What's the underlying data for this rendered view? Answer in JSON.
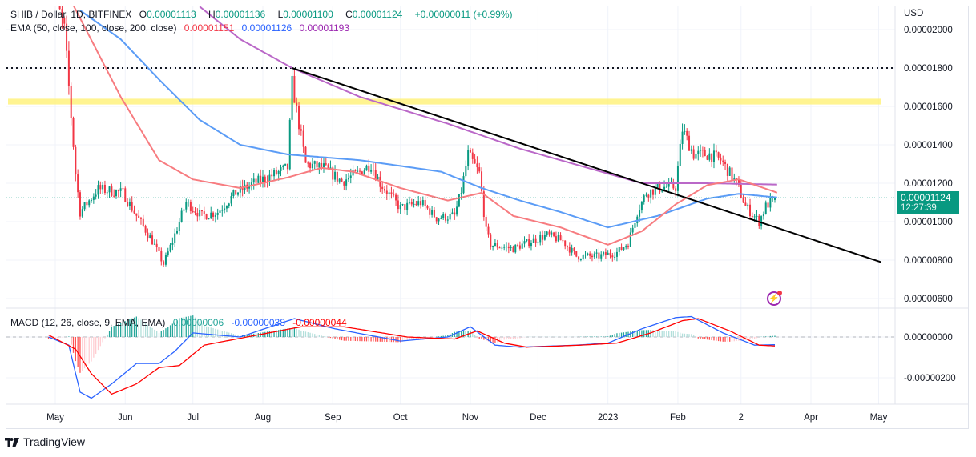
{
  "header": {
    "symbol": "SHIB / Dollar, 1D, BITFINEX",
    "open_label": "O",
    "open": "0.00001113",
    "high_label": "H",
    "high": "0.00001136",
    "low_label": "L",
    "low": "0.00001100",
    "close_label": "C",
    "close": "0.00001124",
    "change": "+0.00000011 (+0.99%)"
  },
  "ema_legend": {
    "label": "EMA (50, close, 100, close, 200, close)",
    "ema50": "0.00001151",
    "ema100": "0.00001126",
    "ema200": "0.00001193"
  },
  "macd_legend": {
    "label": "MACD (12, 26, close, 9, EMA, EMA)",
    "hist": "0.00000006",
    "macd": "-0.00000038",
    "signal": "-0.00000044"
  },
  "price_axis": {
    "currency": "USD",
    "ticks": [
      "0.00002000",
      "0.00001800",
      "0.00001600",
      "0.00001400",
      "0.00001200",
      "0.00001000",
      "0.00000800",
      "0.00000600"
    ]
  },
  "macd_axis": {
    "ticks": [
      "0.00000000",
      "-0.00000200"
    ]
  },
  "time_axis": {
    "ticks": [
      "May",
      "Jun",
      "Jul",
      "Aug",
      "Sep",
      "Oct",
      "Nov",
      "Dec",
      "2023",
      "Feb",
      "2",
      "Apr",
      "May"
    ]
  },
  "last_price": {
    "value": "0.00001124",
    "countdown": "12:27:39"
  },
  "branding": "TradingView",
  "colors": {
    "up": "#089981",
    "down": "#f23645",
    "ema50": "#f77c80",
    "ema100": "#5b9cf6",
    "ema200": "#ba68c8",
    "macd": "#2962ff",
    "signal": "#ff0000",
    "band": "#fff176"
  },
  "chart_data": {
    "type": "candlestick",
    "units": "USD",
    "ylim": [
      5.5e-06,
      2.15e-05
    ],
    "close_keypoints": [
      [
        "2022-04-28",
        2.3e-05
      ],
      [
        "2022-05-05",
        2e-05
      ],
      [
        "2022-05-10",
        1.25e-05
      ],
      [
        "2022-05-12",
        1.05e-05
      ],
      [
        "2022-05-20",
        1.17e-05
      ],
      [
        "2022-05-31",
        1.15e-05
      ],
      [
        "2022-06-05",
        1.05e-05
      ],
      [
        "2022-06-13",
        9e-06
      ],
      [
        "2022-06-18",
        7.8e-06
      ],
      [
        "2022-06-22",
        9e-06
      ],
      [
        "2022-06-28",
        1.1e-05
      ],
      [
        "2022-07-05",
        1.03e-05
      ],
      [
        "2022-07-12",
        1.05e-05
      ],
      [
        "2022-07-20",
        1.15e-05
      ],
      [
        "2022-07-28",
        1.2e-05
      ],
      [
        "2022-08-05",
        1.24e-05
      ],
      [
        "2022-08-12",
        1.28e-05
      ],
      [
        "2022-08-14",
        1.72e-05
      ],
      [
        "2022-08-16",
        1.58e-05
      ],
      [
        "2022-08-20",
        1.3e-05
      ],
      [
        "2022-08-28",
        1.28e-05
      ],
      [
        "2022-09-05",
        1.21e-05
      ],
      [
        "2022-09-12",
        1.25e-05
      ],
      [
        "2022-09-18",
        1.3e-05
      ],
      [
        "2022-09-22",
        1.2e-05
      ],
      [
        "2022-10-01",
        1.07e-05
      ],
      [
        "2022-10-10",
        1.1e-05
      ],
      [
        "2022-10-17",
        1.02e-05
      ],
      [
        "2022-10-25",
        1.03e-05
      ],
      [
        "2022-10-28",
        1.16e-05
      ],
      [
        "2022-10-31",
        1.35e-05
      ],
      [
        "2022-11-05",
        1.25e-05
      ],
      [
        "2022-11-08",
        9.5e-06
      ],
      [
        "2022-11-10",
        8.8e-06
      ],
      [
        "2022-11-20",
        8.6e-06
      ],
      [
        "2022-11-28",
        9e-06
      ],
      [
        "2022-12-05",
        9.3e-06
      ],
      [
        "2022-12-12",
        9e-06
      ],
      [
        "2022-12-18",
        8.2e-06
      ],
      [
        "2022-12-28",
        8.2e-06
      ],
      [
        "2023-01-05",
        8.4e-06
      ],
      [
        "2023-01-10",
        8.9e-06
      ],
      [
        "2023-01-14",
        1.05e-05
      ],
      [
        "2023-01-18",
        1.15e-05
      ],
      [
        "2023-01-25",
        1.18e-05
      ],
      [
        "2023-01-31",
        1.18e-05
      ],
      [
        "2023-02-03",
        1.48e-05
      ],
      [
        "2023-02-08",
        1.35e-05
      ],
      [
        "2023-02-15",
        1.35e-05
      ],
      [
        "2023-02-20",
        1.32e-05
      ],
      [
        "2023-02-27",
        1.2e-05
      ],
      [
        "2023-03-03",
        1.08e-05
      ],
      [
        "2023-03-09",
        1e-05
      ],
      [
        "2023-03-12",
        1.08e-05
      ],
      [
        "2023-03-16",
        1.124e-05
      ]
    ],
    "ema50": [
      [
        "2022-05-08",
        2.15e-05
      ],
      [
        "2022-05-30",
        1.65e-05
      ],
      [
        "2022-06-16",
        1.32e-05
      ],
      [
        "2022-07-01",
        1.22e-05
      ],
      [
        "2022-07-22",
        1.175e-05
      ],
      [
        "2022-08-12",
        1.23e-05
      ],
      [
        "2022-08-27",
        1.28e-05
      ],
      [
        "2022-09-10",
        1.26e-05
      ],
      [
        "2022-10-01",
        1.175e-05
      ],
      [
        "2022-10-22",
        1.11e-05
      ],
      [
        "2022-11-06",
        1.15e-05
      ],
      [
        "2022-11-20",
        1.03e-05
      ],
      [
        "2022-12-11",
        9.7e-06
      ],
      [
        "2023-01-01",
        8.8e-06
      ],
      [
        "2023-01-16",
        9.5e-06
      ],
      [
        "2023-01-31",
        1.09e-05
      ],
      [
        "2023-02-14",
        1.19e-05
      ],
      [
        "2023-02-28",
        1.22e-05
      ],
      [
        "2023-03-17",
        1.151e-05
      ]
    ],
    "ema100": [
      [
        "2022-05-12",
        2.1e-05
      ],
      [
        "2022-05-30",
        1.95e-05
      ],
      [
        "2022-06-16",
        1.74e-05
      ],
      [
        "2022-07-04",
        1.53e-05
      ],
      [
        "2022-07-22",
        1.4e-05
      ],
      [
        "2022-08-12",
        1.35e-05
      ],
      [
        "2022-09-13",
        1.32e-05
      ],
      [
        "2022-10-19",
        1.26e-05
      ],
      [
        "2022-11-06",
        1.175e-05
      ],
      [
        "2022-11-23",
        1.11e-05
      ],
      [
        "2022-12-11",
        1.05e-05
      ],
      [
        "2023-01-01",
        9.7e-06
      ],
      [
        "2023-01-23",
        1.03e-05
      ],
      [
        "2023-02-14",
        1.12e-05
      ],
      [
        "2023-02-28",
        1.145e-05
      ],
      [
        "2023-03-17",
        1.126e-05
      ]
    ],
    "ema200": [
      [
        "2022-07-04",
        2.12e-05
      ],
      [
        "2022-07-22",
        1.95e-05
      ],
      [
        "2022-08-14",
        1.8e-05
      ],
      [
        "2022-09-13",
        1.65e-05
      ],
      [
        "2022-10-22",
        1.51e-05
      ],
      [
        "2022-11-23",
        1.38e-05
      ],
      [
        "2022-12-29",
        1.26e-05
      ],
      [
        "2023-01-16",
        1.2e-05
      ],
      [
        "2023-02-14",
        1.2e-05
      ],
      [
        "2023-03-17",
        1.193e-05
      ]
    ],
    "macd": [
      [
        "2022-04-28",
        0.0
      ],
      [
        "2022-05-07",
        -4e-07
      ],
      [
        "2022-05-12",
        -2.7e-06
      ],
      [
        "2022-05-17",
        -3e-06
      ],
      [
        "2022-05-26",
        -2.3e-06
      ],
      [
        "2022-06-06",
        -1.3e-06
      ],
      [
        "2022-06-16",
        -1.3e-06
      ],
      [
        "2022-06-23",
        -7e-07
      ],
      [
        "2022-07-01",
        2e-07
      ],
      [
        "2022-07-22",
        0.0
      ],
      [
        "2022-08-15",
        9e-07
      ],
      [
        "2022-09-02",
        4e-07
      ],
      [
        "2022-10-01",
        -2e-07
      ],
      [
        "2022-10-22",
        0.0
      ],
      [
        "2022-11-01",
        5e-07
      ],
      [
        "2022-11-12",
        -4e-07
      ],
      [
        "2022-11-23",
        -5e-07
      ],
      [
        "2022-12-18",
        -4e-07
      ],
      [
        "2023-01-01",
        -3e-07
      ],
      [
        "2023-01-16",
        4e-07
      ],
      [
        "2023-01-31",
        9.5e-07
      ],
      [
        "2023-02-07",
        1e-06
      ],
      [
        "2023-02-21",
        2e-07
      ],
      [
        "2023-03-07",
        -4e-07
      ],
      [
        "2023-03-16",
        -3.8e-07
      ]
    ],
    "signal": [
      [
        "2022-04-28",
        1e-07
      ],
      [
        "2022-05-10",
        -6e-07
      ],
      [
        "2022-05-17",
        -1.8e-06
      ],
      [
        "2022-05-26",
        -2.8e-06
      ],
      [
        "2022-06-06",
        -2.3e-06
      ],
      [
        "2022-06-16",
        -1.5e-06
      ],
      [
        "2022-06-25",
        -1.4e-06
      ],
      [
        "2022-07-06",
        -4e-07
      ],
      [
        "2022-07-25",
        0.0
      ],
      [
        "2022-08-18",
        5e-07
      ],
      [
        "2022-09-06",
        5e-07
      ],
      [
        "2022-10-04",
        0.0
      ],
      [
        "2022-10-25",
        -1e-07
      ],
      [
        "2022-11-04",
        3e-07
      ],
      [
        "2022-11-16",
        -3e-07
      ],
      [
        "2022-11-26",
        -5e-07
      ],
      [
        "2022-12-20",
        -4e-07
      ],
      [
        "2023-01-05",
        -3e-07
      ],
      [
        "2023-01-20",
        2e-07
      ],
      [
        "2023-02-03",
        8e-07
      ],
      [
        "2023-02-10",
        9e-07
      ],
      [
        "2023-02-24",
        3e-07
      ],
      [
        "2023-03-09",
        -4e-07
      ],
      [
        "2023-03-16",
        -4.4e-07
      ]
    ],
    "annotations": {
      "horizontal_line": 1.8e-05,
      "resistance_band": [
        1.61e-05,
        1.64e-05
      ],
      "trendline": [
        [
          "2022-08-14",
          1.8e-05
        ],
        [
          "2023-05-02",
          7.9e-06
        ]
      ]
    }
  }
}
